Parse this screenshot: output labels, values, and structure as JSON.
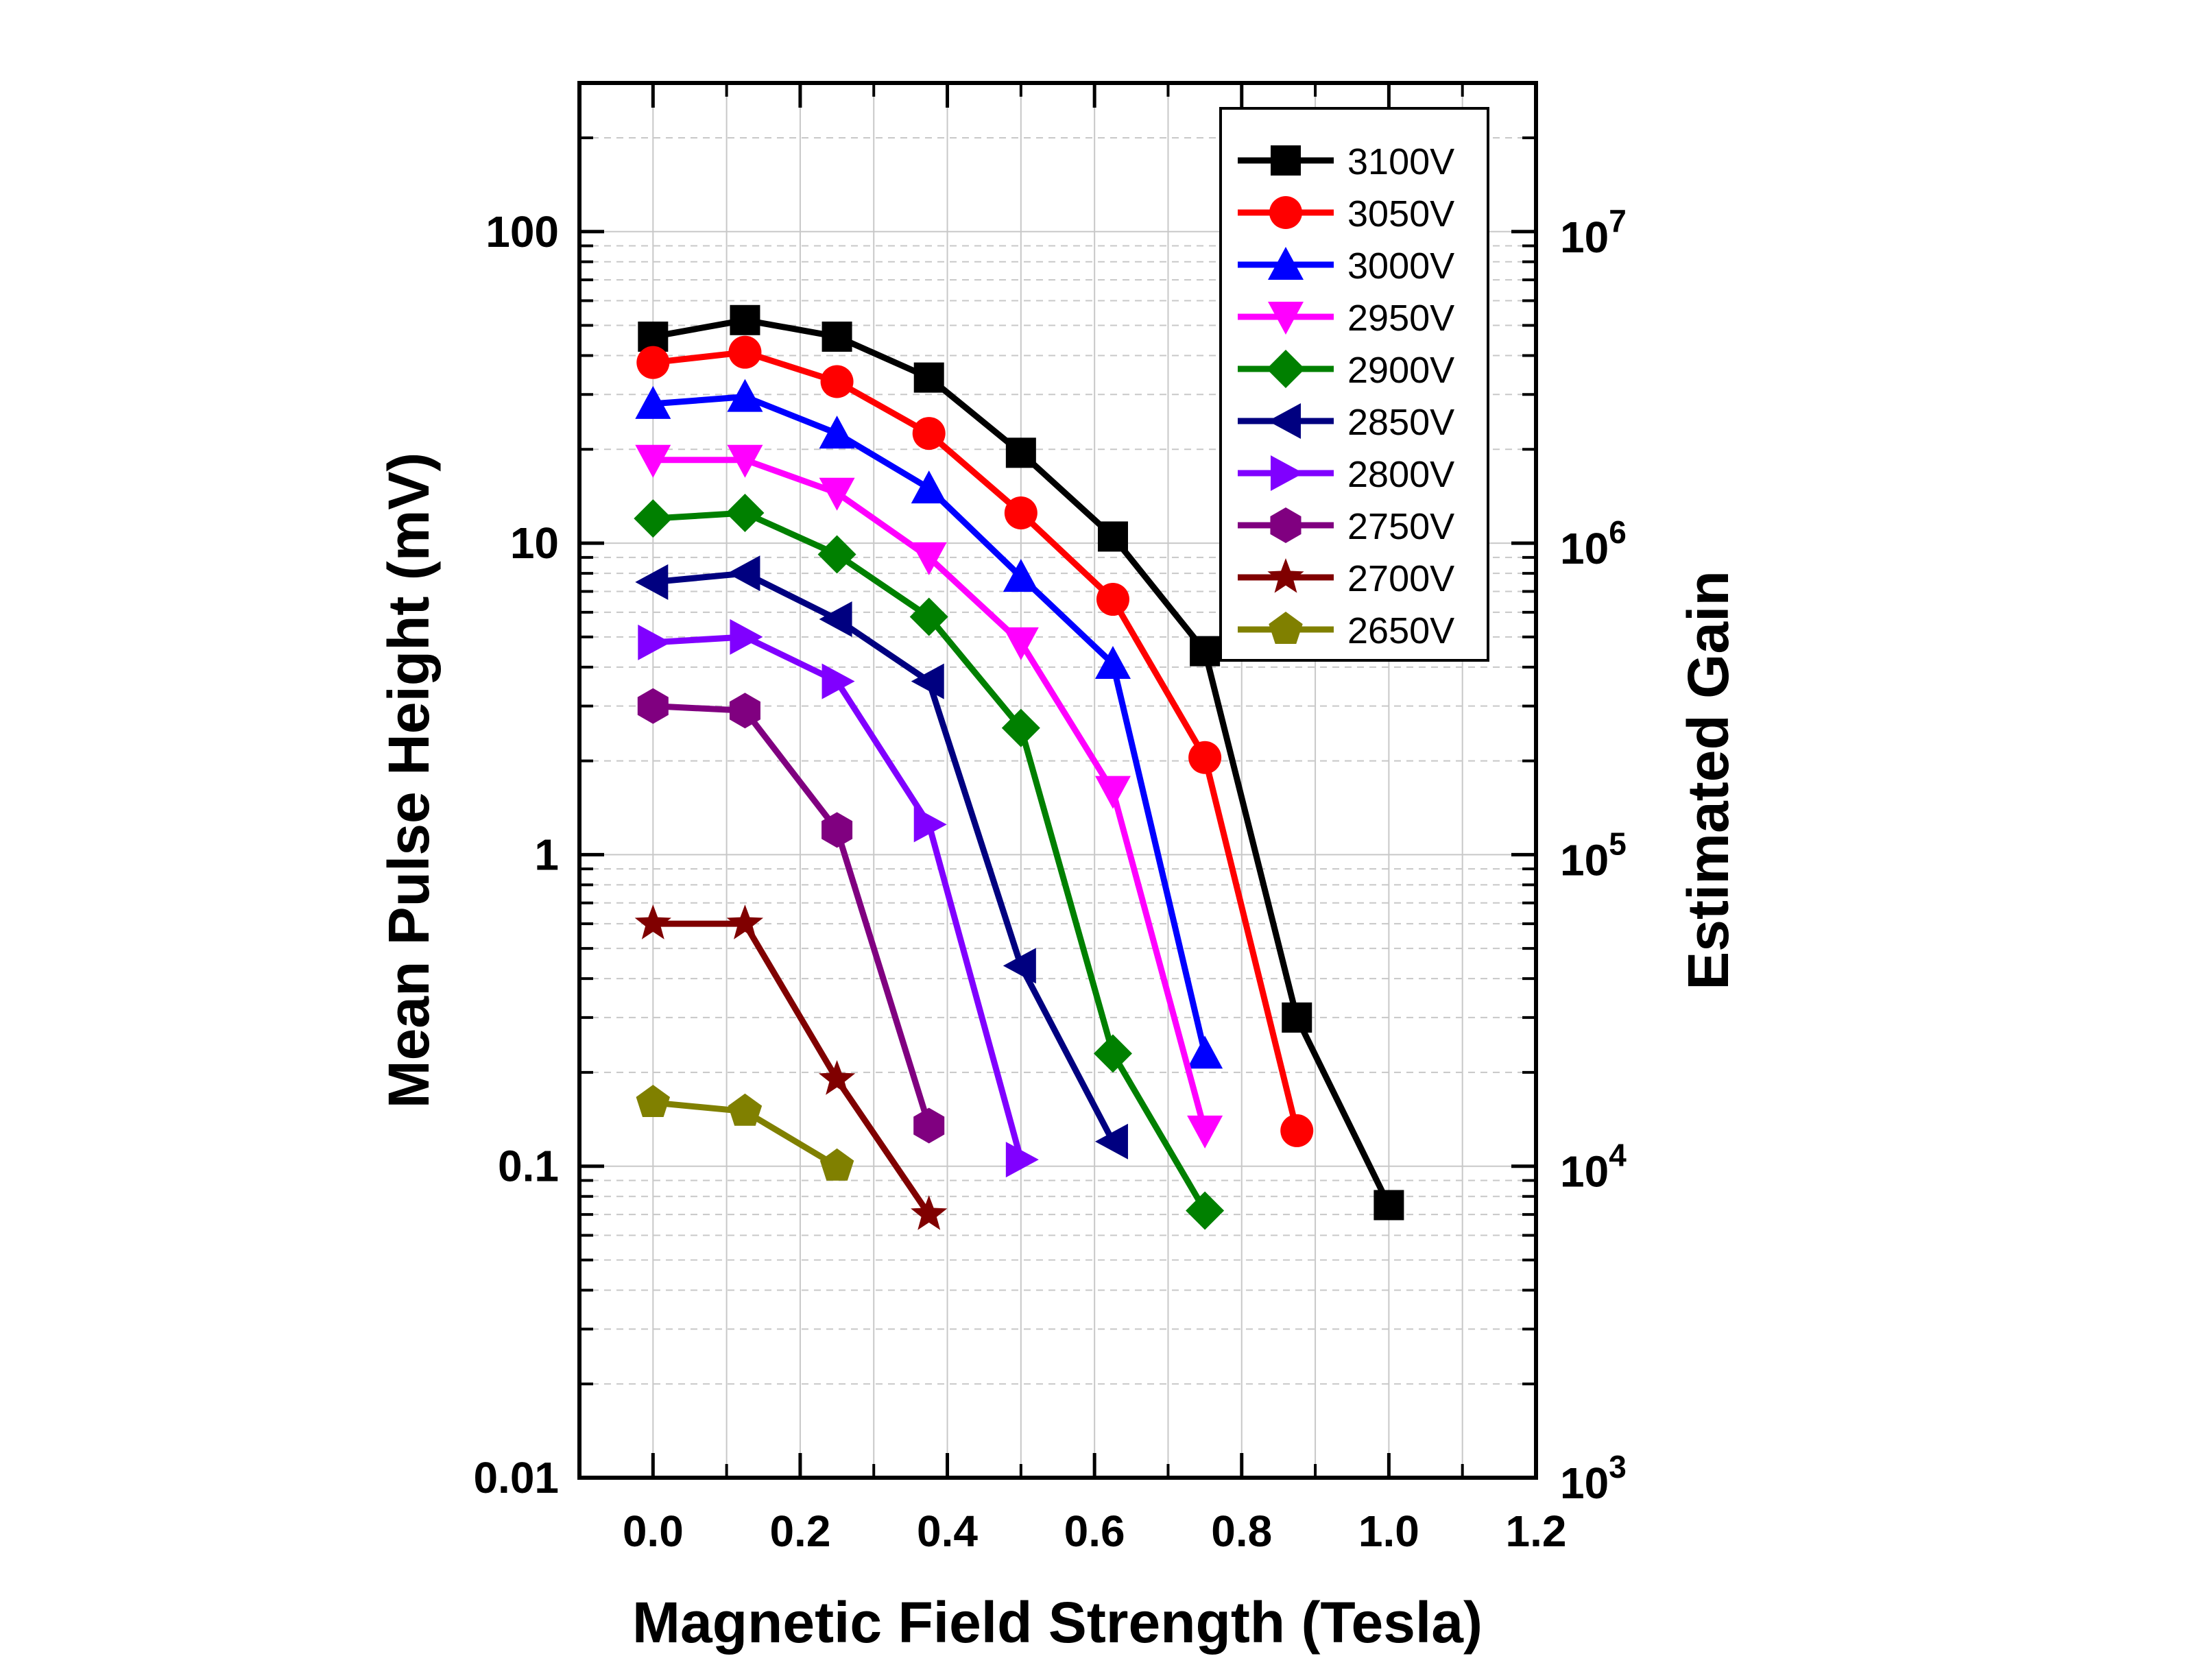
{
  "chart_data": {
    "type": "line",
    "xlabel": "Magnetic Field Strength (Tesla)",
    "ylabel": "Mean Pulse Height (mV)",
    "y2label": "Estimated Gain",
    "xlim": [
      -0.1,
      1.2
    ],
    "ylim": [
      0.01,
      300
    ],
    "y_scale": "log",
    "y2lim": [
      1000,
      30000000
    ],
    "grid": true,
    "legend_position": "top-right",
    "x_ticks": [
      "0.0",
      "0.2",
      "0.4",
      "0.6",
      "0.8",
      "1.0",
      "1.2"
    ],
    "y_ticks": [
      "0.01",
      "0.1",
      "1",
      "10",
      "100"
    ],
    "y2_ticks": [
      {
        "base": "10",
        "exp": "3"
      },
      {
        "base": "10",
        "exp": "4"
      },
      {
        "base": "10",
        "exp": "5"
      },
      {
        "base": "10",
        "exp": "6"
      },
      {
        "base": "10",
        "exp": "7"
      }
    ],
    "series": [
      {
        "name": "3100V",
        "color": "#000000",
        "marker": "square",
        "x": [
          0,
          0.125,
          0.25,
          0.375,
          0.5,
          0.625,
          0.75,
          0.875,
          1.0
        ],
        "y": [
          46,
          52,
          46,
          34,
          19.5,
          10.5,
          4.5,
          0.3,
          0.075
        ]
      },
      {
        "name": "3050V",
        "color": "#ff0000",
        "marker": "circle",
        "x": [
          0,
          0.125,
          0.25,
          0.375,
          0.5,
          0.625,
          0.75,
          0.875
        ],
        "y": [
          38,
          41,
          33,
          22.5,
          12.5,
          6.6,
          2.05,
          0.13
        ]
      },
      {
        "name": "3000V",
        "color": "#0000ff",
        "marker": "triangle-up",
        "x": [
          0,
          0.125,
          0.25,
          0.375,
          0.5,
          0.625,
          0.75
        ],
        "y": [
          28,
          29.5,
          22.5,
          15,
          7.8,
          4.1,
          0.23
        ]
      },
      {
        "name": "2950V",
        "color": "#ff00ff",
        "marker": "triangle-down",
        "x": [
          0,
          0.125,
          0.25,
          0.375,
          0.5,
          0.625,
          0.75
        ],
        "y": [
          18.5,
          18.5,
          14.5,
          9,
          4.8,
          1.6,
          0.13
        ]
      },
      {
        "name": "2900V",
        "color": "#008000",
        "marker": "diamond",
        "x": [
          0,
          0.125,
          0.25,
          0.375,
          0.5,
          0.625,
          0.75
        ],
        "y": [
          12,
          12.5,
          9.2,
          5.8,
          2.55,
          0.23,
          0.072
        ]
      },
      {
        "name": "2850V",
        "color": "#000080",
        "marker": "triangle-left",
        "x": [
          0,
          0.125,
          0.25,
          0.375,
          0.5,
          0.625
        ],
        "y": [
          7.5,
          8,
          5.7,
          3.6,
          0.44,
          0.12
        ]
      },
      {
        "name": "2800V",
        "color": "#8000ff",
        "marker": "triangle-right",
        "x": [
          0,
          0.125,
          0.25,
          0.375,
          0.5
        ],
        "y": [
          4.8,
          5,
          3.6,
          1.25,
          0.105
        ]
      },
      {
        "name": "2750V",
        "color": "#800080",
        "marker": "hexagon",
        "x": [
          0,
          0.125,
          0.25,
          0.375
        ],
        "y": [
          3,
          2.9,
          1.2,
          0.135
        ]
      },
      {
        "name": "2700V",
        "color": "#800000",
        "marker": "star",
        "x": [
          0,
          0.125,
          0.25,
          0.375
        ],
        "y": [
          0.6,
          0.6,
          0.19,
          0.07
        ]
      },
      {
        "name": "2650V",
        "color": "#808000",
        "marker": "pentagon",
        "x": [
          0,
          0.125,
          0.25
        ],
        "y": [
          0.16,
          0.15,
          0.1
        ]
      }
    ]
  }
}
